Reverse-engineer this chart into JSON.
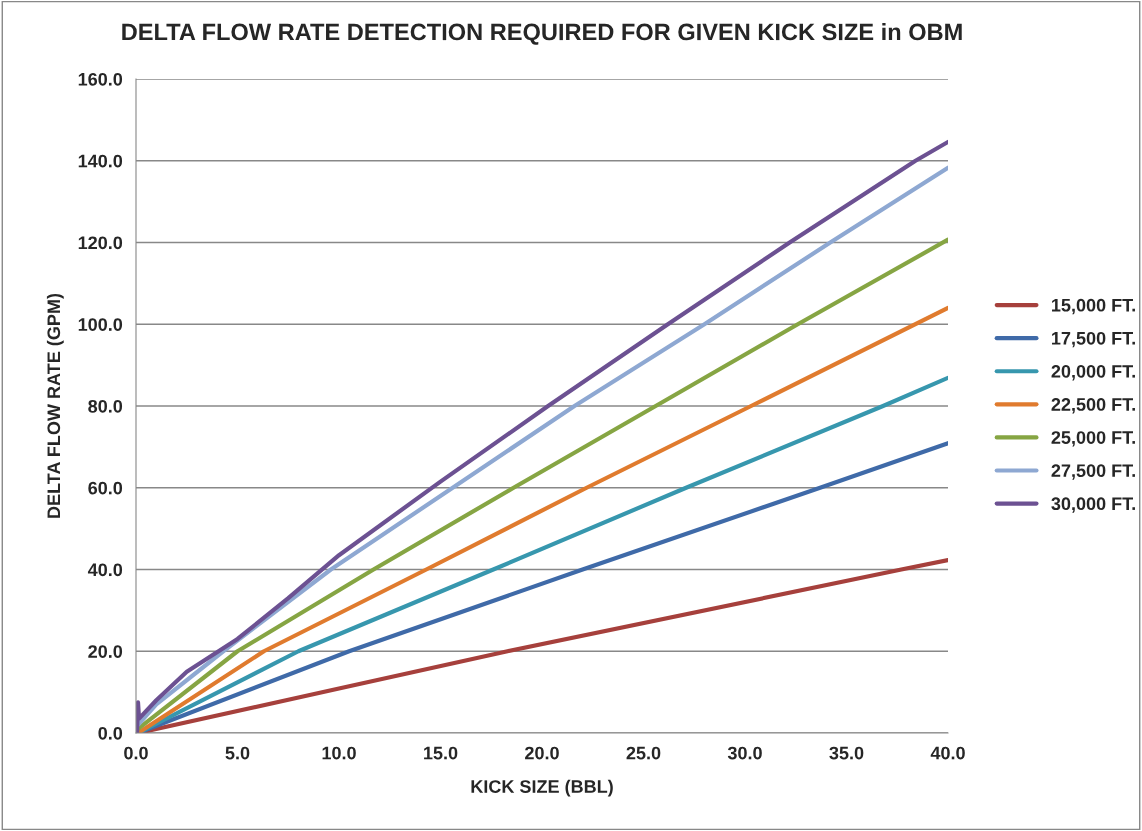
{
  "chart_data": {
    "type": "line",
    "title": "DELTA FLOW RATE DETECTION REQUIRED FOR GIVEN KICK SIZE in OBM",
    "xlabel": "KICK SIZE (BBL)",
    "ylabel": "DELTA FLOW RATE (GPM)",
    "xlim": [
      0,
      40
    ],
    "ylim": [
      0,
      160
    ],
    "xticks": [
      {
        "value": 0,
        "label": "0.0"
      },
      {
        "value": 5,
        "label": "5.0"
      },
      {
        "value": 10,
        "label": "10.0"
      },
      {
        "value": 15,
        "label": "15.0"
      },
      {
        "value": 20,
        "label": "20.0"
      },
      {
        "value": 25,
        "label": "25.0"
      },
      {
        "value": 30,
        "label": "30.0"
      },
      {
        "value": 35,
        "label": "35.0"
      },
      {
        "value": 40,
        "label": "40.0"
      }
    ],
    "yticks": [
      {
        "value": 0,
        "label": "0.0"
      },
      {
        "value": 20,
        "label": "20.0"
      },
      {
        "value": 40,
        "label": "40.0"
      },
      {
        "value": 60,
        "label": "60.0"
      },
      {
        "value": 80,
        "label": "80.0"
      },
      {
        "value": 100,
        "label": "100.0"
      },
      {
        "value": 120,
        "label": "120.0"
      },
      {
        "value": 140,
        "label": "140.0"
      },
      {
        "value": 160,
        "label": "160.0"
      }
    ],
    "grid": "y",
    "legend": "right",
    "marker": "none",
    "line_style": "solid",
    "series": [
      {
        "name": "15,000 FT.",
        "color": "#a6403c",
        "x": [
          0.1,
          10,
          18.3,
          37.7,
          40
        ],
        "values": [
          0,
          10.9,
          20,
          40,
          42.3
        ]
      },
      {
        "name": "17,500 FT.",
        "color": "#3f6aa8",
        "x": [
          0.1,
          10.5,
          22.0,
          33.7,
          40
        ],
        "values": [
          0,
          20,
          40,
          60,
          70.9
        ]
      },
      {
        "name": "20,000 FT.",
        "color": "#3797ae",
        "x": [
          0.1,
          8.0,
          17.6,
          27.1,
          36.8,
          40
        ],
        "values": [
          0,
          20,
          40,
          60,
          80,
          86.9
        ]
      },
      {
        "name": "22,500 FT.",
        "color": "#e07b2e",
        "x": [
          0.1,
          6.3,
          14.3,
          22.2,
          30.3,
          40
        ],
        "values": [
          0,
          20,
          40,
          60,
          80,
          104
        ]
      },
      {
        "name": "25,000 FT.",
        "color": "#86a543",
        "x": [
          0.1,
          5.0,
          11.7,
          18.6,
          25.6,
          32.6,
          40
        ],
        "values": [
          1,
          20,
          40,
          60,
          80,
          100,
          120.7
        ]
      },
      {
        "name": "27,500 FT.",
        "color": "#8ea8d2",
        "x": [
          0.1,
          1,
          4.3,
          9.6,
          15.6,
          21.6,
          28.0,
          34.2,
          40
        ],
        "values": [
          2,
          7,
          20,
          40,
          60,
          80,
          100,
          120,
          138.3
        ]
      },
      {
        "name": "30,000 FT.",
        "color": "#6c5192",
        "x": [
          0.05,
          0.1,
          0.15,
          1,
          2.5,
          5,
          7.5,
          10,
          15,
          20.3,
          26.2,
          32.2,
          38.4,
          40
        ],
        "values": [
          0,
          7.5,
          3.5,
          8,
          15,
          23,
          33,
          43.5,
          61.5,
          80,
          100,
          120,
          140,
          144.6
        ]
      }
    ]
  }
}
